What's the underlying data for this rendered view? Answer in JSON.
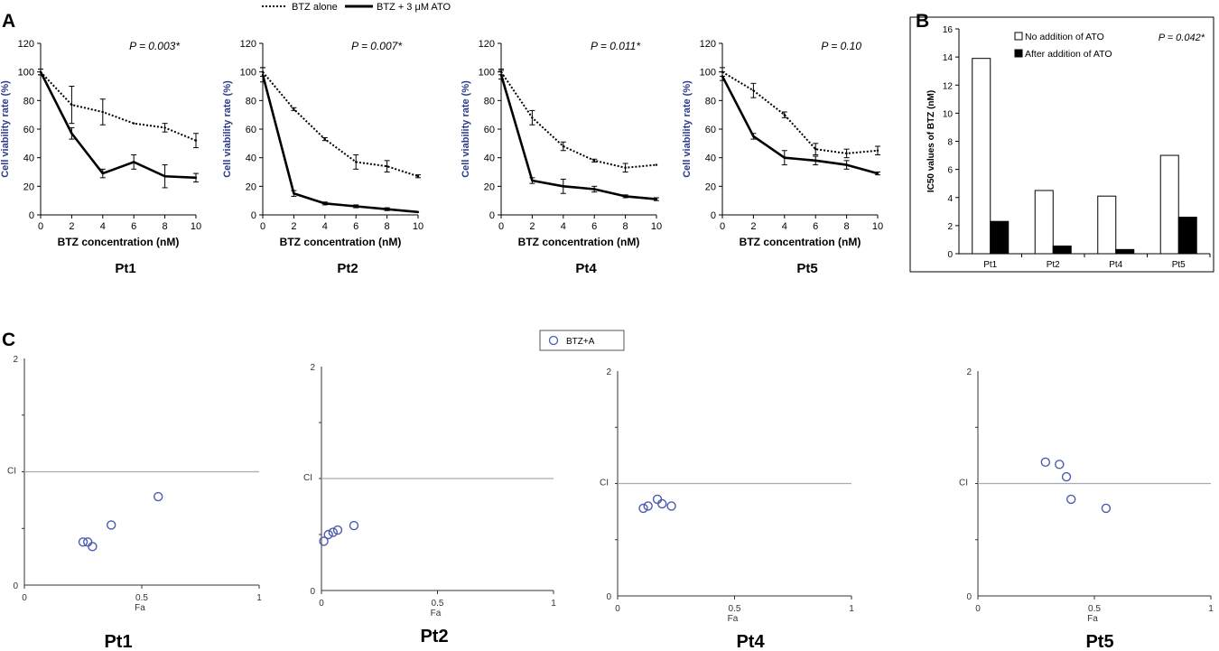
{
  "panel_letters": [
    "A",
    "B",
    "C"
  ],
  "legend_A": {
    "dotted": "BTZ alone",
    "solid": "BTZ + 3 μM ATO"
  },
  "legend_C": {
    "marker": "BTZ+A"
  },
  "colors": {
    "axis_label": "#2b3a8f",
    "marker": "#4a5bb0",
    "ci_line": "#aaaaaa",
    "ink": "#000000"
  },
  "chart_data": [
    {
      "type": "line",
      "panel": "A",
      "title": "Pt1",
      "annotation": "P = 0.003*",
      "xlabel": "BTZ concentration (nM)",
      "ylabel": "Cell viability rate (%)",
      "xlim": [
        0,
        10
      ],
      "ylim": [
        0,
        120
      ],
      "xticks": [
        0,
        2,
        4,
        6,
        8,
        10
      ],
      "yticks": [
        0,
        20,
        40,
        60,
        80,
        100,
        120
      ],
      "x": [
        0,
        2,
        4,
        6,
        8,
        10
      ],
      "series": [
        {
          "name": "BTZ alone",
          "style": "dotted",
          "values": [
            100,
            77,
            72,
            64,
            61,
            52
          ],
          "errors": [
            2,
            13,
            9,
            0,
            3,
            5
          ]
        },
        {
          "name": "BTZ + 3 μM ATO",
          "style": "solid",
          "values": [
            100,
            57,
            29,
            37,
            27,
            26
          ],
          "errors": [
            2,
            4,
            3,
            5,
            8,
            3
          ]
        }
      ]
    },
    {
      "type": "line",
      "panel": "A",
      "title": "Pt2",
      "annotation": "P = 0.007*",
      "xlabel": "BTZ concentration (nM)",
      "ylabel": "Cell viability rate (%)",
      "xlim": [
        0,
        10
      ],
      "ylim": [
        0,
        120
      ],
      "xticks": [
        0,
        2,
        4,
        6,
        8,
        10
      ],
      "yticks": [
        0,
        20,
        40,
        60,
        80,
        100,
        120
      ],
      "x": [
        0,
        2,
        4,
        6,
        8,
        10
      ],
      "series": [
        {
          "name": "BTZ alone",
          "style": "dotted",
          "values": [
            100,
            74,
            53,
            37,
            34,
            27
          ],
          "errors": [
            3,
            1,
            1,
            5,
            4,
            1
          ]
        },
        {
          "name": "BTZ + 3 μM ATO",
          "style": "solid",
          "values": [
            98,
            15,
            8,
            6,
            4,
            2
          ],
          "errors": [
            5,
            2,
            1,
            1,
            1,
            0
          ]
        }
      ]
    },
    {
      "type": "line",
      "panel": "A",
      "title": "Pt4",
      "annotation": "P = 0.011*",
      "xlabel": "BTZ concentration (nM)",
      "ylabel": "Cell viability rate (%)",
      "xlim": [
        0,
        10
      ],
      "ylim": [
        0,
        120
      ],
      "xticks": [
        0,
        2,
        4,
        6,
        8,
        10
      ],
      "yticks": [
        0,
        20,
        40,
        60,
        80,
        100,
        120
      ],
      "x": [
        0,
        2,
        4,
        6,
        8,
        10
      ],
      "series": [
        {
          "name": "BTZ alone",
          "style": "dotted",
          "values": [
            100,
            68,
            48,
            38,
            33,
            35
          ],
          "errors": [
            2,
            5,
            3,
            1,
            3,
            0
          ]
        },
        {
          "name": "BTZ + 3 μM ATO",
          "style": "solid",
          "values": [
            98,
            24,
            20,
            18,
            13,
            11
          ],
          "errors": [
            3,
            2,
            5,
            2,
            1,
            1
          ]
        }
      ]
    },
    {
      "type": "line",
      "panel": "A",
      "title": "Pt5",
      "annotation": "P = 0.10",
      "xlabel": "BTZ concentration (nM)",
      "ylabel": "Cell viability rate (%)",
      "xlim": [
        0,
        10
      ],
      "ylim": [
        0,
        120
      ],
      "xticks": [
        0,
        2,
        4,
        6,
        8,
        10
      ],
      "yticks": [
        0,
        20,
        40,
        60,
        80,
        100,
        120
      ],
      "x": [
        0,
        2,
        4,
        6,
        8,
        10
      ],
      "series": [
        {
          "name": "BTZ alone",
          "style": "dotted",
          "values": [
            100,
            87,
            70,
            46,
            43,
            45
          ],
          "errors": [
            3,
            5,
            2,
            4,
            3,
            3
          ]
        },
        {
          "name": "BTZ + 3 μM ATO",
          "style": "solid",
          "values": [
            97,
            55,
            40,
            38,
            35,
            29
          ],
          "errors": [
            3,
            2,
            5,
            3,
            3,
            1
          ]
        }
      ]
    },
    {
      "type": "bar",
      "panel": "B",
      "annotation": "P = 0.042*",
      "ylabel": "IC50 values of BTZ (nM)",
      "ylim": [
        0,
        16
      ],
      "yticks": [
        0,
        2,
        4,
        6,
        8,
        10,
        12,
        14,
        16
      ],
      "categories": [
        "Pt1",
        "Pt2",
        "Pt4",
        "Pt5"
      ],
      "series": [
        {
          "name": "No addition of ATO",
          "fill": "#ffffff",
          "values": [
            13.9,
            4.5,
            4.1,
            7.0
          ]
        },
        {
          "name": "After addition of ATO",
          "fill": "#000000",
          "values": [
            2.3,
            0.55,
            0.3,
            2.6
          ]
        }
      ],
      "legend": "top-left"
    },
    {
      "type": "scatter",
      "panel": "C",
      "title": "Pt1",
      "xlabel": "Fa",
      "ylabel": "CI",
      "xlim": [
        0,
        1
      ],
      "ylim": [
        0,
        2
      ],
      "xticks": [
        "0",
        "0.5",
        "1"
      ],
      "yticks": [
        "0",
        "2"
      ],
      "reference_line": 1,
      "points": [
        [
          0.25,
          0.38
        ],
        [
          0.27,
          0.38
        ],
        [
          0.29,
          0.34
        ],
        [
          0.37,
          0.53
        ],
        [
          0.57,
          0.78
        ]
      ]
    },
    {
      "type": "scatter",
      "panel": "C",
      "title": "Pt2",
      "xlabel": "Fa",
      "ylabel": "CI",
      "xlim": [
        0,
        1
      ],
      "ylim": [
        0,
        2
      ],
      "xticks": [
        "0",
        "0.5",
        "1"
      ],
      "yticks": [
        "0",
        "2"
      ],
      "reference_line": 1,
      "points": [
        [
          0.01,
          0.44
        ],
        [
          0.03,
          0.5
        ],
        [
          0.05,
          0.52
        ],
        [
          0.07,
          0.54
        ],
        [
          0.14,
          0.58
        ]
      ]
    },
    {
      "type": "scatter",
      "panel": "C",
      "title": "Pt4",
      "xlabel": "Fa",
      "ylabel": "CI",
      "xlim": [
        0,
        1
      ],
      "ylim": [
        0,
        2
      ],
      "xticks": [
        "0",
        "0.5",
        "1"
      ],
      "yticks": [
        "0",
        "2"
      ],
      "reference_line": 1,
      "points": [
        [
          0.11,
          0.78
        ],
        [
          0.13,
          0.8
        ],
        [
          0.17,
          0.86
        ],
        [
          0.19,
          0.82
        ],
        [
          0.23,
          0.8
        ]
      ]
    },
    {
      "type": "scatter",
      "panel": "C",
      "title": "Pt5",
      "xlabel": "Fa",
      "ylabel": "CI",
      "xlim": [
        0,
        1
      ],
      "ylim": [
        0,
        2
      ],
      "xticks": [
        "0",
        "0.5",
        "1"
      ],
      "yticks": [
        "0",
        "2"
      ],
      "reference_line": 1,
      "points": [
        [
          0.29,
          1.19
        ],
        [
          0.35,
          1.17
        ],
        [
          0.38,
          1.06
        ],
        [
          0.4,
          0.86
        ],
        [
          0.55,
          0.78
        ]
      ]
    }
  ]
}
